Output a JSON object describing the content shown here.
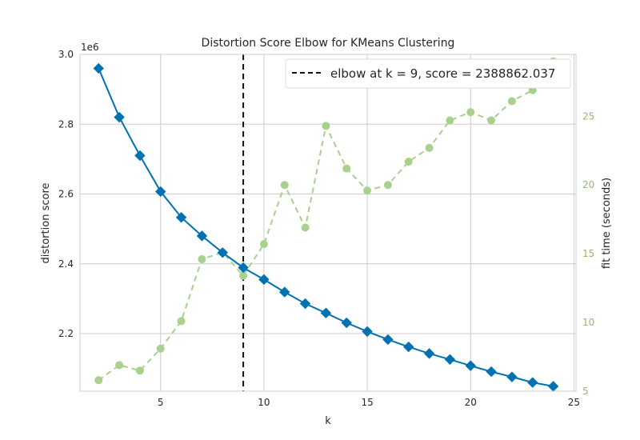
{
  "chart_data": {
    "type": "line",
    "title": "Distortion Score Elbow for KMeans Clustering",
    "xlabel": "k",
    "ylabel": "distortion score",
    "y2label": "fit time (seconds)",
    "y_offset_text": "1e6",
    "xlim": [
      1.1,
      25.1
    ],
    "ylim": [
      2.035,
      3.0
    ],
    "y2lim": [
      5.0,
      29.5
    ],
    "x_ticks": [
      5,
      10,
      15,
      20,
      25
    ],
    "y_ticks": [
      2.2,
      2.4,
      2.6,
      2.8,
      3.0
    ],
    "y2_ticks": [
      5,
      10,
      15,
      20,
      25
    ],
    "x_tick_labels": [
      "5",
      "10",
      "15",
      "20",
      "25"
    ],
    "y_tick_labels": [
      "2.2",
      "2.4",
      "2.6",
      "2.8",
      "3.0"
    ],
    "y2_tick_labels": [
      "5",
      "10",
      "15",
      "20",
      "25"
    ],
    "grid": true,
    "legend": {
      "placement": "top-right",
      "text": "elbow at k = 9, score = 2388862.037"
    },
    "elbow": {
      "k": 9,
      "score": 2388862.037
    },
    "x": [
      2,
      3,
      4,
      5,
      6,
      7,
      8,
      9,
      10,
      11,
      12,
      13,
      14,
      15,
      16,
      17,
      18,
      19,
      20,
      21,
      22,
      23,
      24
    ],
    "series": [
      {
        "name": "distortion score",
        "axis": "left",
        "color": "#0072B2",
        "marker": "diamond",
        "values": [
          2.96,
          2.82,
          2.71,
          2.607,
          2.533,
          2.48,
          2.432,
          2.389,
          2.355,
          2.319,
          2.286,
          2.259,
          2.231,
          2.206,
          2.183,
          2.162,
          2.143,
          2.126,
          2.108,
          2.091,
          2.076,
          2.06,
          2.049
        ]
      },
      {
        "name": "fit time (seconds)",
        "axis": "right",
        "color": "#A8D18D",
        "marker": "circle",
        "values": [
          5.8,
          6.9,
          6.5,
          8.1,
          10.1,
          14.6,
          15.1,
          13.4,
          15.7,
          20.0,
          16.9,
          24.3,
          21.2,
          19.6,
          20.0,
          21.7,
          22.7,
          24.7,
          25.3,
          24.7,
          26.1,
          26.9,
          29.0
        ]
      }
    ],
    "colors": {
      "elbow_line": "#111111",
      "grid": "#cccccc",
      "axis_frame": "#cccccc",
      "right_axis_text": "#8bbc6c"
    }
  }
}
